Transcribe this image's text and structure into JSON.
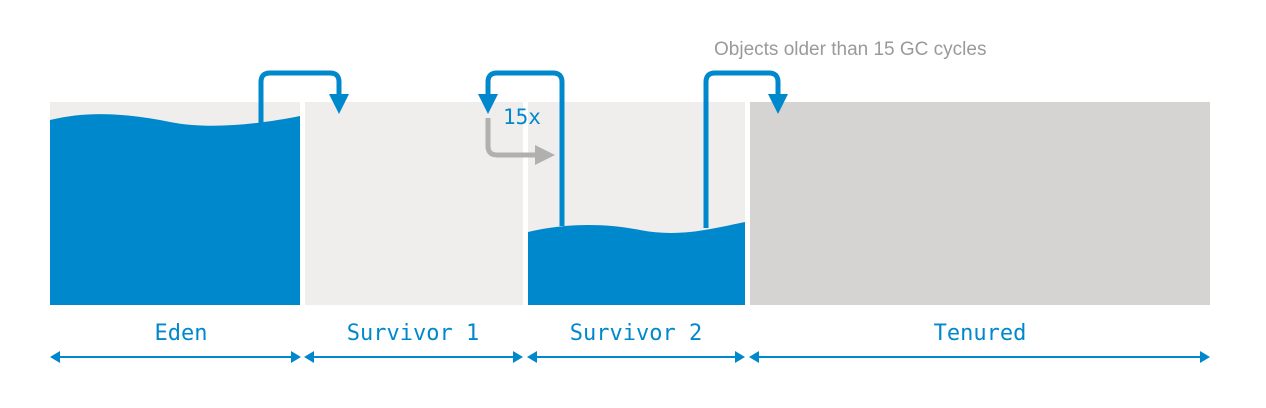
{
  "diagram": {
    "note": "Objects older than 15 GC cycles",
    "cycle_count": "15x",
    "generations": [
      {
        "id": "eden",
        "label": "Eden"
      },
      {
        "id": "survivor1",
        "label": "Survivor 1"
      },
      {
        "id": "survivor2",
        "label": "Survivor 2"
      },
      {
        "id": "tenured",
        "label": "Tenured"
      }
    ]
  },
  "colors": {
    "fill_blue": "#0088cc",
    "young_bg": "#efeeec",
    "tenured_bg": "#d5d4d2",
    "gray_arrow": "#b0b0b0",
    "note_text": "#9a9a9a"
  }
}
